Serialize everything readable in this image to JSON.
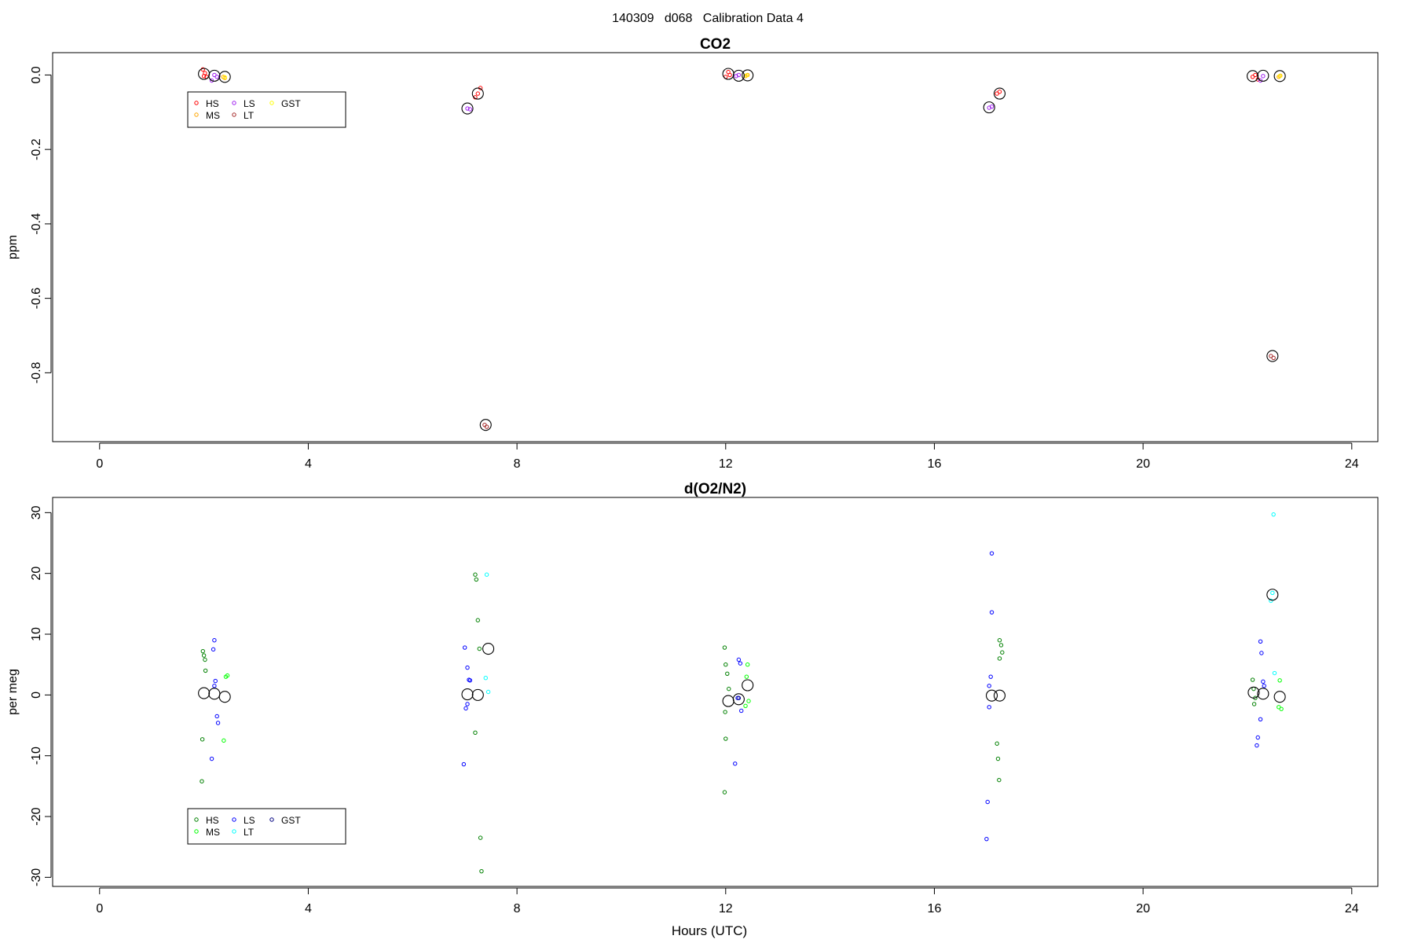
{
  "figure_title": "140309   d068   Calibration Data 4",
  "xlabel": "Hours (UTC)",
  "chart_data": [
    {
      "type": "scatter",
      "title": "CO2",
      "ylabel": "ppm",
      "xlim": [
        -0.9,
        24.5
      ],
      "ylim": [
        -0.985,
        0.06
      ],
      "xticks": [
        0,
        4,
        8,
        12,
        16,
        20,
        24
      ],
      "yticks": [
        0.0,
        -0.2,
        -0.4,
        -0.6,
        -0.8
      ],
      "ytick_labels": [
        "0.0",
        "-0.2",
        "-0.4",
        "-0.6",
        "-0.8"
      ],
      "xtick_labels": [
        "0",
        "4",
        "8",
        "12",
        "16",
        "20",
        "24"
      ],
      "legend": {
        "position": "top-left",
        "entries": [
          {
            "label": "HS",
            "color": "#ff0000"
          },
          {
            "label": "MS",
            "color": "#ffa500"
          },
          {
            "label": "LS",
            "color": "#a020f0"
          },
          {
            "label": "LT",
            "color": "#a52a2a"
          },
          {
            "label": "GST",
            "color": "#ffff00"
          }
        ]
      },
      "series": [
        {
          "name": "HS",
          "color": "#ff0000",
          "points": [
            [
              1.98,
              0.015
            ],
            [
              2.0,
              -0.003
            ],
            [
              2.02,
              0.005
            ],
            [
              2.05,
              -0.005
            ],
            [
              7.2,
              -0.06
            ],
            [
              7.25,
              -0.05
            ],
            [
              7.3,
              -0.035
            ],
            [
              12.0,
              -0.005
            ],
            [
              12.05,
              0.008
            ],
            [
              12.08,
              0.0
            ],
            [
              17.2,
              -0.05
            ],
            [
              17.25,
              -0.045
            ],
            [
              22.1,
              -0.005
            ],
            [
              22.15,
              0.0
            ],
            [
              22.2,
              -0.012
            ]
          ]
        },
        {
          "name": "MS",
          "color": "#ffa500",
          "points": [
            [
              2.37,
              -0.005
            ],
            [
              2.4,
              -0.008
            ],
            [
              12.38,
              -0.003
            ],
            [
              12.42,
              0.0
            ],
            [
              22.6,
              -0.005
            ],
            [
              22.63,
              -0.002
            ]
          ]
        },
        {
          "name": "LS",
          "color": "#a020f0",
          "points": [
            [
              2.15,
              -0.015
            ],
            [
              2.2,
              0.0
            ],
            [
              2.25,
              -0.005
            ],
            [
              7.05,
              -0.09
            ],
            [
              7.1,
              -0.092
            ],
            [
              12.2,
              -0.003
            ],
            [
              12.25,
              0.0
            ],
            [
              17.05,
              -0.088
            ],
            [
              17.1,
              -0.085
            ],
            [
              22.3,
              -0.003
            ],
            [
              22.25,
              -0.015
            ]
          ]
        },
        {
          "name": "LT",
          "color": "#a52a2a",
          "points": [
            [
              7.38,
              -0.94
            ],
            [
              7.42,
              -0.945
            ],
            [
              22.45,
              -0.755
            ],
            [
              22.5,
              -0.76
            ]
          ]
        },
        {
          "name": "GST",
          "color": "#ffff00",
          "points": [
            [
              2.4,
              -0.006
            ],
            [
              12.4,
              -0.001
            ],
            [
              22.62,
              -0.003
            ]
          ]
        },
        {
          "name": "mean",
          "color": "#000000",
          "points": [
            [
              2.0,
              0.003
            ],
            [
              2.2,
              -0.002
            ],
            [
              2.4,
              -0.005
            ],
            [
              7.05,
              -0.09
            ],
            [
              7.25,
              -0.05
            ],
            [
              7.4,
              -0.94
            ],
            [
              12.05,
              0.003
            ],
            [
              12.25,
              -0.002
            ],
            [
              12.42,
              -0.001
            ],
            [
              17.05,
              -0.087
            ],
            [
              17.25,
              -0.05
            ],
            [
              22.1,
              -0.003
            ],
            [
              22.3,
              -0.002
            ],
            [
              22.48,
              -0.755
            ],
            [
              22.62,
              -0.003
            ]
          ]
        }
      ]
    },
    {
      "type": "scatter",
      "title": "d(O2/N2)",
      "ylabel": "per meg",
      "xlim": [
        -0.9,
        24.5
      ],
      "ylim": [
        -31.5,
        32.5
      ],
      "xticks": [
        0,
        4,
        8,
        12,
        16,
        20,
        24
      ],
      "yticks": [
        30,
        20,
        10,
        0,
        -10,
        -20,
        -30
      ],
      "xtick_labels": [
        "0",
        "4",
        "8",
        "12",
        "16",
        "20",
        "24"
      ],
      "ytick_labels": [
        "30",
        "20",
        "10",
        "0",
        "-10",
        "-20",
        "-30"
      ],
      "legend": {
        "position": "bottom-left",
        "entries": [
          {
            "label": "HS",
            "color": "#008000"
          },
          {
            "label": "MS",
            "color": "#00ff00"
          },
          {
            "label": "LS",
            "color": "#0000ff"
          },
          {
            "label": "LT",
            "color": "#00ffff"
          },
          {
            "label": "GST",
            "color": "#000080"
          }
        ]
      },
      "series": [
        {
          "name": "HS",
          "color": "#008000",
          "points": [
            [
              1.98,
              7.2
            ],
            [
              2.0,
              6.5
            ],
            [
              2.02,
              5.8
            ],
            [
              2.03,
              4.0
            ],
            [
              1.97,
              -7.3
            ],
            [
              1.96,
              -14.2
            ],
            [
              7.2,
              19.8
            ],
            [
              7.22,
              19.0
            ],
            [
              7.25,
              12.3
            ],
            [
              7.28,
              7.6
            ],
            [
              7.2,
              -6.2
            ],
            [
              7.3,
              -23.5
            ],
            [
              7.32,
              -29.0
            ],
            [
              11.98,
              7.8
            ],
            [
              12.0,
              5.0
            ],
            [
              12.03,
              3.5
            ],
            [
              12.06,
              1.0
            ],
            [
              11.99,
              -2.8
            ],
            [
              12.0,
              -7.2
            ],
            [
              11.98,
              -16.0
            ],
            [
              17.25,
              9.0
            ],
            [
              17.28,
              8.2
            ],
            [
              17.3,
              7.0
            ],
            [
              17.25,
              6.0
            ],
            [
              17.2,
              -8.0
            ],
            [
              17.22,
              -10.5
            ],
            [
              17.24,
              -14.0
            ],
            [
              22.1,
              2.5
            ],
            [
              22.12,
              1.0
            ],
            [
              22.15,
              -0.5
            ],
            [
              22.13,
              -1.5
            ]
          ]
        },
        {
          "name": "MS",
          "color": "#00ff00",
          "points": [
            [
              2.42,
              3.0
            ],
            [
              2.45,
              3.2
            ],
            [
              2.38,
              -7.5
            ],
            [
              12.42,
              5.0
            ],
            [
              12.4,
              3.0
            ],
            [
              12.44,
              -1.0
            ],
            [
              12.38,
              -1.8
            ],
            [
              22.62,
              2.4
            ],
            [
              22.6,
              -2.0
            ],
            [
              22.65,
              -2.3
            ]
          ]
        },
        {
          "name": "LS",
          "color": "#0000ff",
          "points": [
            [
              2.2,
              9.0
            ],
            [
              2.18,
              7.5
            ],
            [
              2.22,
              2.3
            ],
            [
              2.2,
              1.5
            ],
            [
              2.25,
              -3.5
            ],
            [
              2.27,
              -4.6
            ],
            [
              2.15,
              -10.5
            ],
            [
              7.0,
              7.8
            ],
            [
              7.05,
              4.5
            ],
            [
              7.08,
              2.5
            ],
            [
              7.1,
              2.4
            ],
            [
              7.05,
              -1.5
            ],
            [
              7.02,
              -2.2
            ],
            [
              6.98,
              -11.4
            ],
            [
              12.25,
              5.8
            ],
            [
              12.28,
              5.2
            ],
            [
              12.23,
              -0.5
            ],
            [
              12.3,
              -2.6
            ],
            [
              12.18,
              -11.3
            ],
            [
              17.1,
              23.3
            ],
            [
              17.1,
              13.6
            ],
            [
              17.08,
              3.0
            ],
            [
              17.05,
              1.5
            ],
            [
              17.05,
              -2.0
            ],
            [
              17.02,
              -17.6
            ],
            [
              17.0,
              -23.7
            ],
            [
              22.25,
              8.8
            ],
            [
              22.27,
              6.9
            ],
            [
              22.3,
              2.2
            ],
            [
              22.32,
              1.5
            ],
            [
              22.25,
              -4.0
            ],
            [
              22.2,
              -7.0
            ],
            [
              22.18,
              -8.3
            ]
          ]
        },
        {
          "name": "LT",
          "color": "#00ffff",
          "points": [
            [
              7.42,
              19.8
            ],
            [
              7.4,
              2.8
            ],
            [
              7.45,
              0.5
            ],
            [
              22.5,
              29.7
            ],
            [
              22.48,
              16.8
            ],
            [
              22.45,
              15.5
            ],
            [
              22.52,
              3.6
            ]
          ]
        },
        {
          "name": "GST",
          "color": "#000080",
          "points": [
            [
              12.25,
              -0.5
            ]
          ]
        },
        {
          "name": "mean",
          "color": "#000000",
          "points": [
            [
              2.0,
              0.3
            ],
            [
              2.2,
              0.2
            ],
            [
              2.4,
              -0.3
            ],
            [
              7.05,
              0.1
            ],
            [
              7.25,
              0.0
            ],
            [
              7.45,
              7.6
            ],
            [
              12.05,
              -1.0
            ],
            [
              12.25,
              -0.7
            ],
            [
              12.42,
              1.6
            ],
            [
              17.1,
              -0.1
            ],
            [
              17.25,
              -0.1
            ],
            [
              22.12,
              0.4
            ],
            [
              22.3,
              0.2
            ],
            [
              22.48,
              16.5
            ],
            [
              22.62,
              -0.3
            ]
          ]
        }
      ]
    }
  ]
}
